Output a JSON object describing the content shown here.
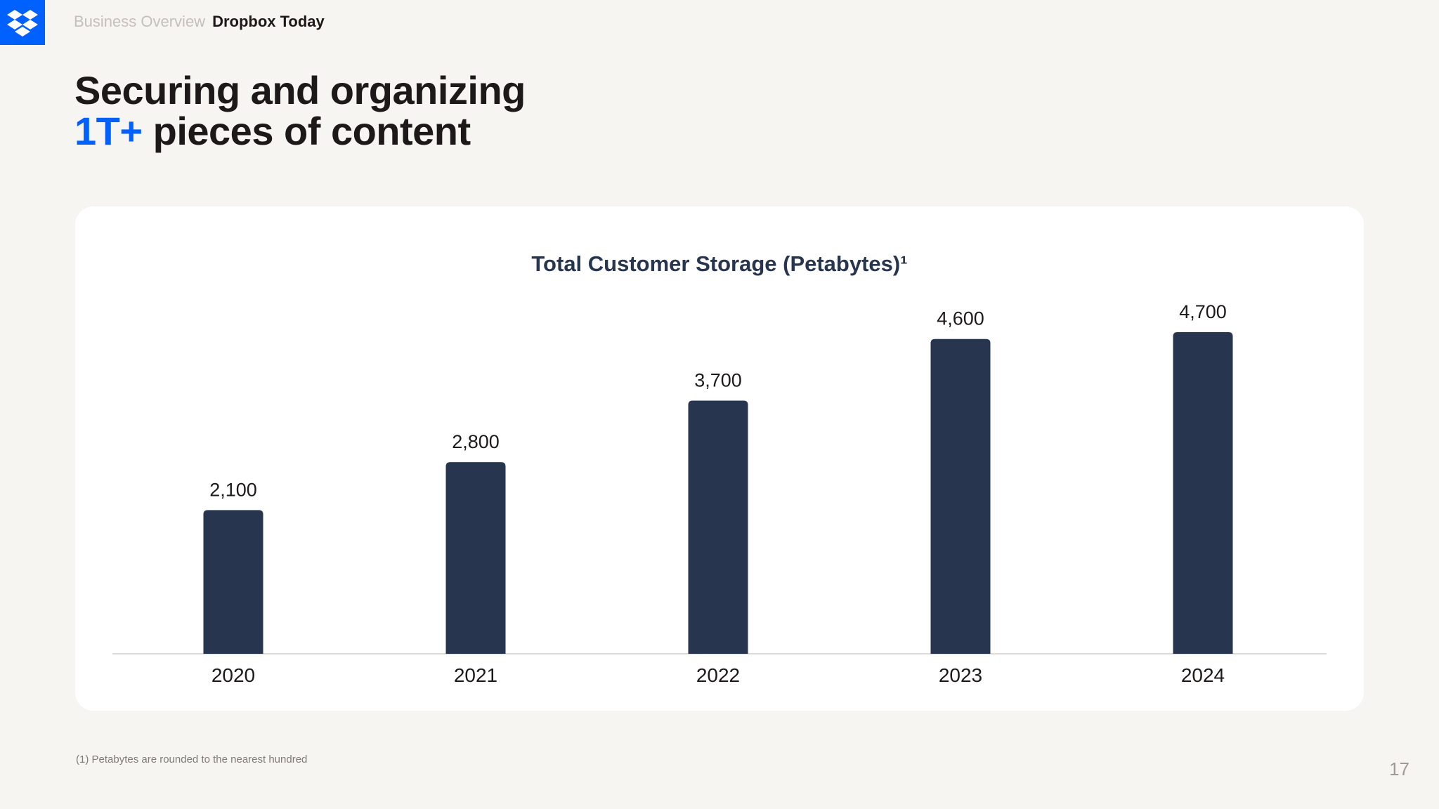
{
  "header": {
    "breadcrumb_parent": "Business Overview",
    "breadcrumb_current": "Dropbox Today"
  },
  "logo": {
    "icon": "dropbox-logo-icon",
    "color": "#0061fe"
  },
  "title": {
    "line1": "Securing and organizing",
    "highlight": "1T+",
    "line2_rest": "pieces of content"
  },
  "colors": {
    "brand_blue": "#0061fe",
    "bar": "#27354f",
    "background": "#f7f5f2",
    "card": "#ffffff"
  },
  "chart_data": {
    "type": "bar",
    "title": "Total Customer Storage (Petabytes)¹",
    "categories": [
      "2020",
      "2021",
      "2022",
      "2023",
      "2024"
    ],
    "values": [
      2100,
      2800,
      3700,
      4600,
      4700
    ],
    "value_labels": [
      "2,100",
      "2,800",
      "3,700",
      "4,600",
      "4,700"
    ],
    "ylim": [
      0,
      4700
    ],
    "grid": false,
    "legend": "none"
  },
  "footnote": "(1) Petabytes are rounded to the nearest hundred",
  "page_number": "17"
}
